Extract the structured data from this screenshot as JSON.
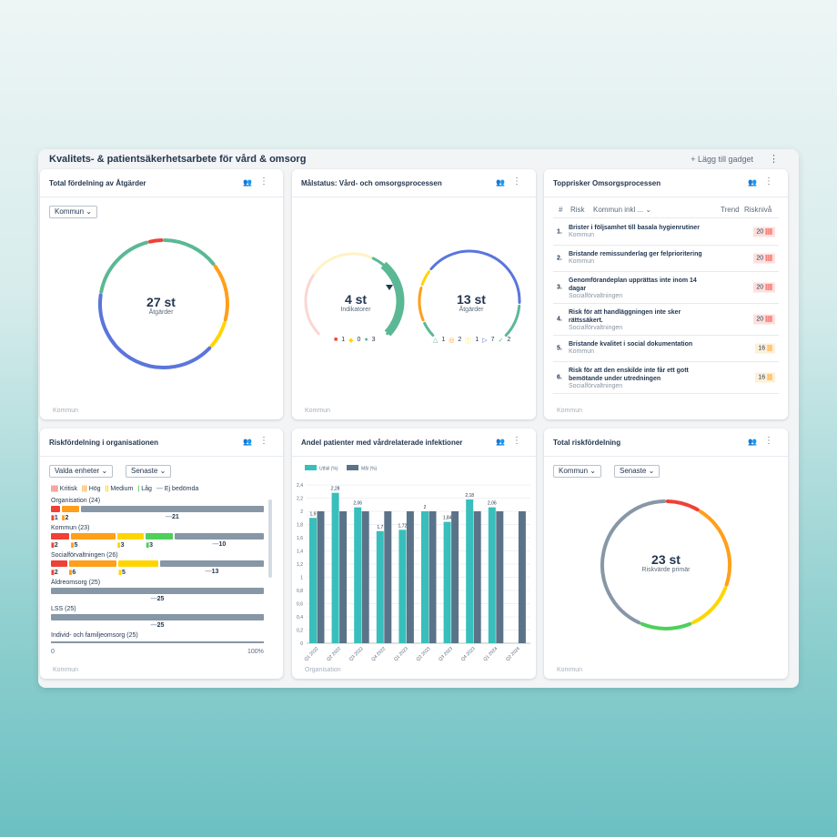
{
  "board": {
    "title": "Kvalitets- & patientsäkerhetsarbete för vård & omsorg",
    "add_gadget": "+ Lägg till gadget",
    "menu": "⋮"
  },
  "colors": {
    "red": "#ef4136",
    "orange": "#ff9f1a",
    "yellow": "#ffd500",
    "green": "#4fcf5b",
    "teal": "#5bb895",
    "blue": "#5a75dc",
    "grey": "#8797a6",
    "bar1": "#38bfbb",
    "bar2": "#5a7389"
  },
  "p1": {
    "title": "Total fördelning av Åtgärder",
    "dropdown": "Kommun ⌄",
    "value": "27 st",
    "label": "Åtgärder",
    "footer": "Kommun",
    "segments": [
      {
        "color": "#ef4136",
        "value": 1
      },
      {
        "color": "#5bb895",
        "value": 4
      },
      {
        "color": "#ff9f1a",
        "value": 4
      },
      {
        "color": "#ffd500",
        "value": 2
      },
      {
        "color": "#5a75dc",
        "value": 11
      },
      {
        "color": "#5bb895",
        "value": 5
      }
    ]
  },
  "p2": {
    "title": "Målstatus: Vård- och omsorgsprocessen",
    "footer": "Kommun",
    "left": {
      "value": "4 st",
      "label": "Indikatorer",
      "legend": [
        {
          "icon": "square-red",
          "color": "#ef4136",
          "count": "1"
        },
        {
          "icon": "diamond-yellow",
          "color": "#ffd500",
          "count": "0"
        },
        {
          "icon": "circle-green",
          "color": "#5bb895",
          "count": "3"
        }
      ]
    },
    "right": {
      "value": "13 st",
      "label": "Åtgärder",
      "legend": [
        {
          "icon": "warning-triangle",
          "color": "#5bb895",
          "count": "1"
        },
        {
          "icon": "pause-circle",
          "color": "#ff9f1a",
          "count": "2"
        },
        {
          "icon": "exclamation-circle",
          "color": "#ffd500",
          "count": "1"
        },
        {
          "icon": "play-circle",
          "color": "#5a75dc",
          "count": "7"
        },
        {
          "icon": "check-circle",
          "color": "#5bb895",
          "count": "2"
        }
      ]
    }
  },
  "p3": {
    "title": "Topprisker Omsorgsprocessen",
    "footer": "Kommun",
    "headers": {
      "num": "#",
      "risk": "Risk",
      "filter": "Kommun inkl ... ⌄",
      "trend": "Trend",
      "level": "Risknivå"
    },
    "rows": [
      {
        "n": "1.",
        "title": "Brister i följsamhet till basala hygienrutiner",
        "org": "Kommun",
        "score": "20",
        "level": "high"
      },
      {
        "n": "2.",
        "title": "Bristande remissunderlag ger felprioritering",
        "org": "Kommun",
        "score": "20",
        "level": "high"
      },
      {
        "n": "3.",
        "title": "Genomförandeplan upprättas inte inom 14 dagar",
        "org": "Socialförvaltningen",
        "score": "20",
        "level": "high"
      },
      {
        "n": "4.",
        "title": "Risk för att handläggningen inte sker rättssäkert.",
        "org": "Socialförvaltningen",
        "score": "20",
        "level": "high"
      },
      {
        "n": "5.",
        "title": "Bristande kvalitet i social dokumentation",
        "org": "Kommun",
        "score": "16",
        "level": "mid"
      },
      {
        "n": "6.",
        "title": "Risk för att den enskilde inte får ett gott bemötande under utredningen",
        "org": "Socialförvaltningen",
        "score": "16",
        "level": "mid"
      }
    ]
  },
  "p4": {
    "title": "Riskfördelning i organisationen",
    "dd1": "Valda enheter ⌄",
    "dd2": "Senaste ⌄",
    "footer": "Kommun",
    "legend": [
      "Kritisk",
      "Hög",
      "Medium",
      "Låg",
      "Ej bedömda"
    ],
    "axis_min": "0",
    "axis_max": "100%",
    "rows": [
      {
        "label": "Organisation (24)",
        "values": [
          1,
          2,
          0,
          0,
          21
        ]
      },
      {
        "label": "Kommun (23)",
        "values": [
          2,
          5,
          3,
          3,
          10
        ]
      },
      {
        "label": "Socialförvaltningen (26)",
        "values": [
          2,
          6,
          5,
          0,
          13
        ]
      },
      {
        "label": "Äldreomsorg (25)",
        "values": [
          0,
          0,
          0,
          0,
          25
        ]
      },
      {
        "label": "LSS (25)",
        "values": [
          0,
          0,
          0,
          0,
          25
        ]
      },
      {
        "label": "Individ- och familjeomsorg (25)",
        "values": []
      }
    ]
  },
  "p5": {
    "title": "Andel patienter med vårdrelaterade infektioner",
    "footer": "Organisation"
  },
  "chart_data": {
    "type": "bar",
    "categories": [
      "Q1 2022",
      "Q2 2022",
      "Q3 2022",
      "Q4 2022",
      "Q1 2023",
      "Q2 2023",
      "Q3 2023",
      "Q4 2023",
      "Q1 2024",
      "Q2 2024"
    ],
    "series": [
      {
        "name": "Utfall (%)",
        "values": [
          1.9,
          2.28,
          2.06,
          1.7,
          1.72,
          2,
          1.84,
          2.18,
          2.06,
          null
        ],
        "labels": [
          "1,9",
          "2,28",
          "2,06",
          "1,7",
          "1,72",
          "2",
          "1,84",
          "2,18",
          "2,06",
          ""
        ]
      },
      {
        "name": "Mål (%)",
        "values": [
          2,
          2,
          2,
          2,
          2,
          2,
          2,
          2,
          2,
          2
        ]
      }
    ],
    "ylim": [
      0,
      2.4
    ],
    "yticks": [
      "0",
      "0,2",
      "0,4",
      "0,6",
      "0,8",
      "1",
      "1,2",
      "1,4",
      "1,6",
      "1,8",
      "2",
      "2,2",
      "2,4"
    ],
    "grid": true,
    "legend": "top-left"
  },
  "p6": {
    "title": "Total riskfördelning",
    "dd1": "Kommun ⌄",
    "dd2": "Senaste ⌄",
    "value": "23 st",
    "label": "Riskvärde primär",
    "footer": "Kommun",
    "segments": [
      {
        "color": "#ef4136",
        "value": 2
      },
      {
        "color": "#ff9f1a",
        "value": 5
      },
      {
        "color": "#ffd500",
        "value": 3
      },
      {
        "color": "#4fcf5b",
        "value": 3
      },
      {
        "color": "#8797a6",
        "value": 10
      }
    ]
  }
}
